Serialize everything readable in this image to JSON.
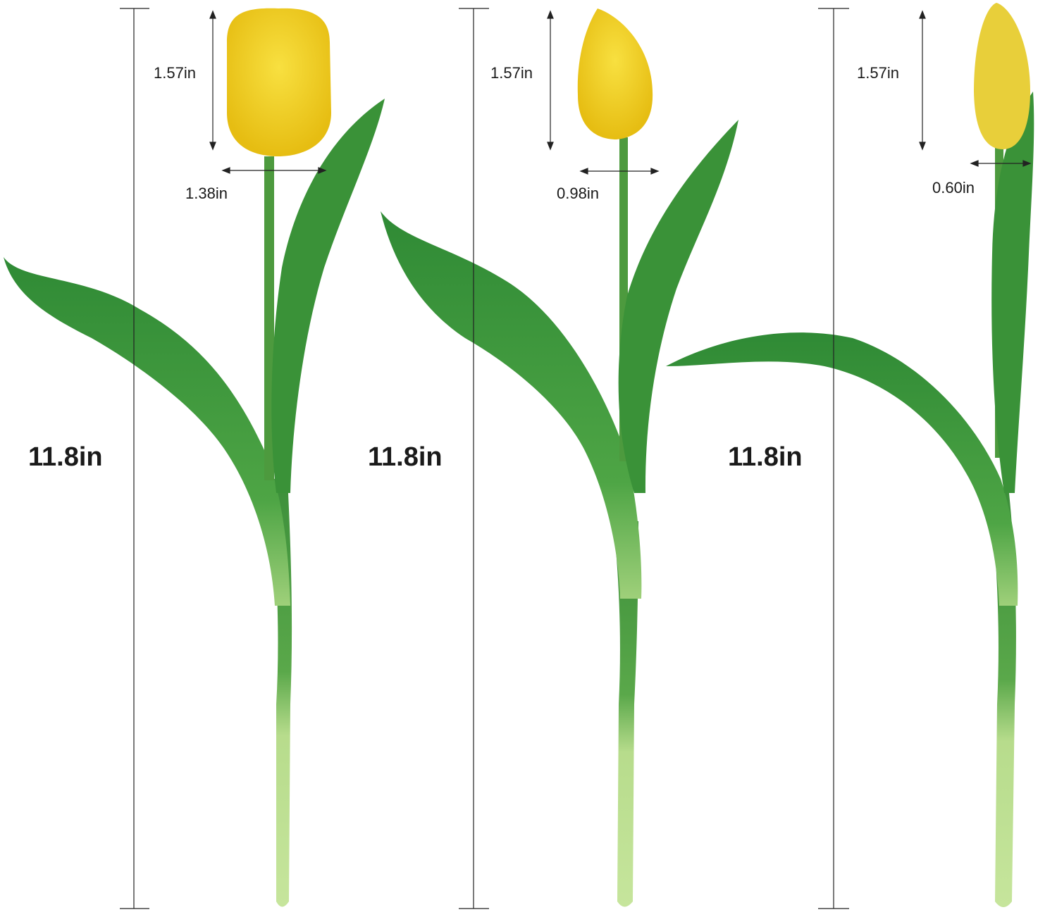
{
  "colors": {
    "petal": "#f2d21c",
    "leaf": "#3f9a3a",
    "stem_light": "#b9de8a",
    "line": "#222222"
  },
  "tulips": [
    {
      "height": "11.8in",
      "bloom_height": "1.57in",
      "bloom_width": "1.38in"
    },
    {
      "height": "11.8in",
      "bloom_height": "1.57in",
      "bloom_width": "0.98in"
    },
    {
      "height": "11.8in",
      "bloom_height": "1.57in",
      "bloom_width": "0.60in"
    }
  ]
}
